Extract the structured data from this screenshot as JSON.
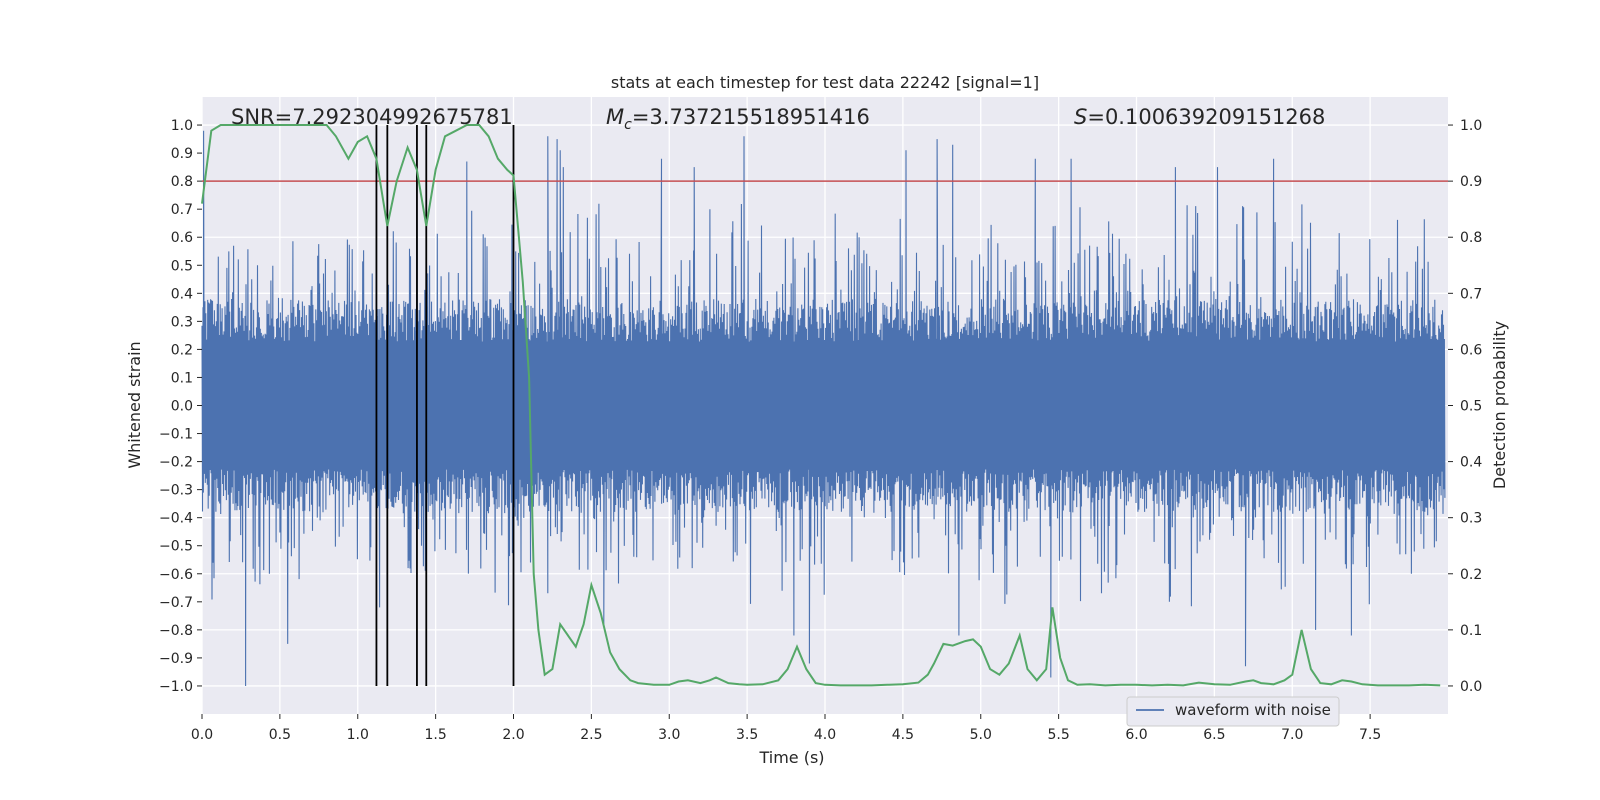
{
  "chart_data": {
    "type": "line",
    "title": "stats at each timestep for test data 22242 [signal=1]",
    "xlabel": "Time (s)",
    "ylabel": "Whitened strain",
    "y2label": "Detection probability",
    "xlim": [
      0.0,
      8.0
    ],
    "ylim": [
      -1.1,
      1.1
    ],
    "y2lim": [
      -0.05,
      1.05
    ],
    "xticks": [
      "0.0",
      "0.5",
      "1.0",
      "1.5",
      "2.0",
      "2.5",
      "3.0",
      "3.5",
      "4.0",
      "4.5",
      "5.0",
      "5.5",
      "6.0",
      "6.5",
      "7.0",
      "7.5"
    ],
    "yticks": [
      "1.0",
      "0.9",
      "0.8",
      "0.7",
      "0.6",
      "0.5",
      "0.4",
      "0.3",
      "0.2",
      "0.1",
      "0.0",
      "−0.1",
      "−0.2",
      "−0.3",
      "−0.4",
      "−0.5",
      "−0.6",
      "−0.7",
      "−0.8",
      "−0.9",
      "−1.0"
    ],
    "y2ticks": [
      "1.0",
      "0.9",
      "0.8",
      "0.7",
      "0.6",
      "0.5",
      "0.4",
      "0.3",
      "0.2",
      "0.1",
      "0.0"
    ],
    "grid": true,
    "legend": {
      "position": "lower-right",
      "entries": [
        "waveform with noise"
      ]
    },
    "annotations": {
      "snr": "SNR=7.292304992675781",
      "mc_value": "=3.737215518951416",
      "s_value": "=0.100639209151268"
    },
    "threshold": {
      "value": 0.9,
      "axis": "right",
      "color": "#c44e52"
    },
    "vertical_lines": [
      1.12,
      1.19,
      1.38,
      1.44,
      2.0
    ],
    "series": [
      {
        "name": "waveform with noise",
        "axis": "left",
        "color": "#4c72b0",
        "envelope": {
          "core": 0.38,
          "typical_peak": 0.6,
          "max_peak": 1.0
        },
        "spikes": [
          [
            0.01,
            0.98
          ],
          [
            0.28,
            -1.0
          ],
          [
            0.55,
            -0.85
          ],
          [
            1.12,
            0.8
          ],
          [
            1.14,
            -0.72
          ],
          [
            1.38,
            0.88
          ],
          [
            1.44,
            0.86
          ],
          [
            1.7,
            0.87
          ],
          [
            2.0,
            -0.72
          ],
          [
            2.22,
            0.96
          ],
          [
            2.28,
            0.95
          ],
          [
            2.3,
            0.91
          ],
          [
            2.32,
            0.85
          ],
          [
            2.58,
            -0.78
          ],
          [
            2.95,
            0.88
          ],
          [
            3.16,
            0.85
          ],
          [
            3.48,
            0.96
          ],
          [
            3.8,
            -0.82
          ],
          [
            3.9,
            -0.92
          ],
          [
            4.52,
            0.91
          ],
          [
            4.72,
            0.95
          ],
          [
            4.82,
            0.93
          ],
          [
            4.86,
            -0.82
          ],
          [
            5.45,
            -0.97
          ],
          [
            5.35,
            0.88
          ],
          [
            5.58,
            0.88
          ],
          [
            6.25,
            0.85
          ],
          [
            6.52,
            0.85
          ],
          [
            6.7,
            -0.93
          ],
          [
            6.88,
            0.88
          ],
          [
            7.15,
            -0.8
          ],
          [
            7.38,
            -0.82
          ]
        ]
      },
      {
        "name": "",
        "axis": "right",
        "color": "#55a868",
        "x": [
          0.0,
          0.06,
          0.12,
          0.2,
          0.3,
          0.4,
          0.5,
          0.6,
          0.7,
          0.8,
          0.86,
          0.94,
          1.0,
          1.06,
          1.12,
          1.19,
          1.25,
          1.32,
          1.38,
          1.44,
          1.5,
          1.56,
          1.63,
          1.7,
          1.78,
          1.84,
          1.9,
          1.96,
          2.0,
          2.06,
          2.1,
          2.13,
          2.16,
          2.2,
          2.25,
          2.3,
          2.35,
          2.4,
          2.45,
          2.5,
          2.56,
          2.62,
          2.68,
          2.75,
          2.8,
          2.9,
          3.0,
          3.06,
          3.12,
          3.2,
          3.26,
          3.3,
          3.38,
          3.45,
          3.5,
          3.6,
          3.7,
          3.76,
          3.82,
          3.88,
          3.94,
          4.0,
          4.1,
          4.2,
          4.3,
          4.4,
          4.5,
          4.6,
          4.66,
          4.7,
          4.76,
          4.82,
          4.9,
          4.95,
          5.0,
          5.06,
          5.12,
          5.18,
          5.25,
          5.3,
          5.36,
          5.42,
          5.46,
          5.51,
          5.56,
          5.62,
          5.7,
          5.8,
          5.9,
          6.0,
          6.1,
          6.2,
          6.3,
          6.4,
          6.5,
          6.6,
          6.7,
          6.75,
          6.8,
          6.88,
          6.95,
          7.0,
          7.06,
          7.12,
          7.18,
          7.25,
          7.32,
          7.38,
          7.45,
          7.55,
          7.65,
          7.75,
          7.85,
          7.95
        ],
        "y": [
          0.86,
          0.99,
          1.0,
          1.0,
          1.0,
          1.0,
          1.0,
          1.0,
          1.0,
          1.0,
          0.98,
          0.94,
          0.97,
          0.98,
          0.94,
          0.82,
          0.9,
          0.96,
          0.92,
          0.82,
          0.92,
          0.98,
          0.99,
          1.0,
          1.0,
          0.98,
          0.94,
          0.92,
          0.91,
          0.72,
          0.55,
          0.2,
          0.1,
          0.02,
          0.03,
          0.11,
          0.09,
          0.07,
          0.11,
          0.18,
          0.13,
          0.06,
          0.03,
          0.01,
          0.005,
          0.002,
          0.002,
          0.008,
          0.01,
          0.005,
          0.01,
          0.015,
          0.005,
          0.003,
          0.002,
          0.003,
          0.01,
          0.03,
          0.07,
          0.03,
          0.005,
          0.002,
          0.001,
          0.001,
          0.001,
          0.002,
          0.003,
          0.006,
          0.02,
          0.04,
          0.075,
          0.072,
          0.08,
          0.083,
          0.07,
          0.03,
          0.02,
          0.04,
          0.09,
          0.03,
          0.01,
          0.03,
          0.14,
          0.05,
          0.01,
          0.002,
          0.003,
          0.001,
          0.002,
          0.002,
          0.001,
          0.002,
          0.001,
          0.006,
          0.003,
          0.002,
          0.008,
          0.01,
          0.005,
          0.003,
          0.01,
          0.02,
          0.1,
          0.03,
          0.005,
          0.003,
          0.01,
          0.008,
          0.003,
          0.001,
          0.001,
          0.001,
          0.002,
          0.001
        ]
      }
    ]
  }
}
